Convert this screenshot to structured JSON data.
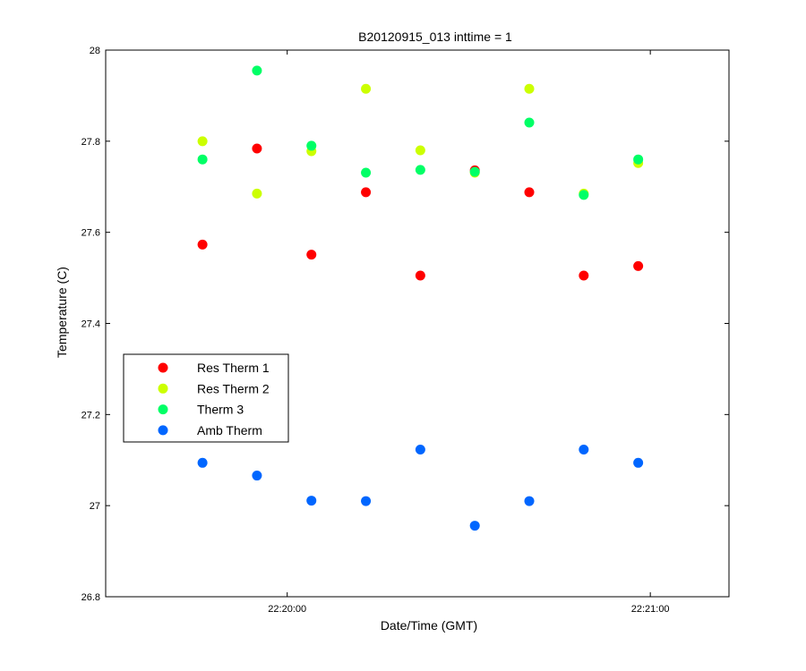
{
  "chart_data": {
    "type": "scatter",
    "title": "B20120915_013 inttime = 1",
    "xlabel": "Date/Time (GMT)",
    "ylabel": "Temperature (C)",
    "x_type": "time",
    "xlim": [
      "22:19:30",
      "22:21:13"
    ],
    "ylim": [
      26.8,
      28.0
    ],
    "x_ticks": [
      {
        "value": "22:20:00",
        "label": "22:20:00"
      },
      {
        "value": "22:21:00",
        "label": "22:21:00"
      }
    ],
    "y_ticks": [
      {
        "value": 26.8,
        "label": "26.8"
      },
      {
        "value": 27.0,
        "label": "27"
      },
      {
        "value": 27.2,
        "label": "27.2"
      },
      {
        "value": 27.4,
        "label": "27.4"
      },
      {
        "value": 27.6,
        "label": "27.6"
      },
      {
        "value": 27.8,
        "label": "27.8"
      },
      {
        "value": 28.0,
        "label": "28"
      }
    ],
    "grid": false,
    "legend_position": "lower-left",
    "x": [
      "22:19:46",
      "22:19:55",
      "22:20:04",
      "22:20:13",
      "22:20:22",
      "22:20:31",
      "22:20:40",
      "22:20:49",
      "22:20:58"
    ],
    "series": [
      {
        "name": "Res Therm 1",
        "color": "#ff0000",
        "values": [
          27.573,
          27.784,
          27.551,
          27.688,
          27.505,
          27.736,
          27.688,
          27.505,
          27.526
        ]
      },
      {
        "name": "Res Therm 2",
        "color": "#ccff00",
        "values": [
          27.8,
          27.685,
          27.778,
          27.915,
          27.78,
          27.731,
          27.915,
          27.685,
          27.752
        ]
      },
      {
        "name": "Therm 3",
        "color": "#00ff66",
        "values": [
          27.76,
          27.955,
          27.79,
          27.731,
          27.737,
          27.733,
          27.841,
          27.682,
          27.76
        ]
      },
      {
        "name": "Amb Therm",
        "color": "#0066ff",
        "values": [
          27.094,
          27.066,
          27.011,
          27.01,
          27.123,
          26.956,
          27.01,
          27.123,
          27.094
        ]
      }
    ]
  }
}
